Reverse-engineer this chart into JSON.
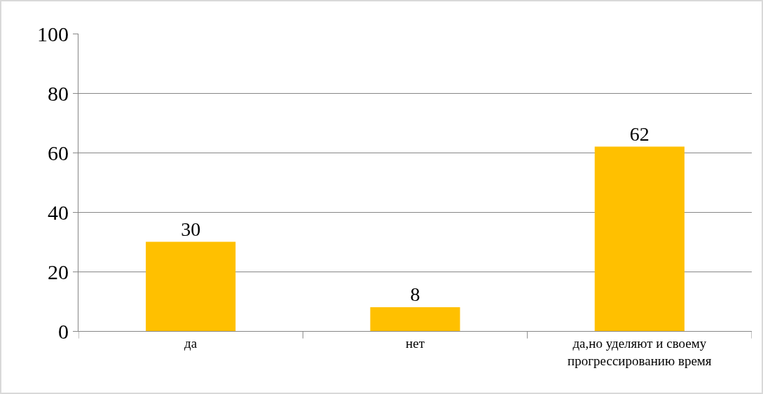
{
  "chart_data": {
    "type": "bar",
    "categories": [
      "да",
      "нет",
      "да,но уделяют и своему прогрессированию время"
    ],
    "values": [
      30,
      8,
      62
    ],
    "color": "#ffc000",
    "ylim": [
      0,
      100
    ],
    "yticks": [
      0,
      20,
      40,
      60,
      80,
      100
    ],
    "grid": "y",
    "data_labels": true
  }
}
